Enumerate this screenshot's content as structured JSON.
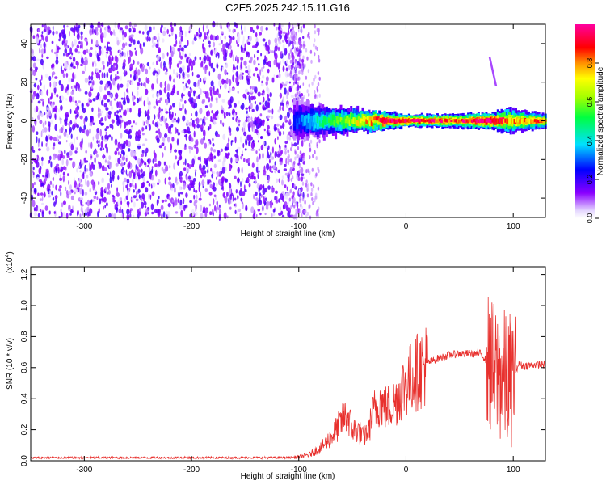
{
  "title": "C2E5.2025.242.15.11.G16",
  "chart_data": [
    {
      "type": "heatmap",
      "title": "C2E5.2025.242.15.11.G16",
      "xlabel": "Height of straight line (km)",
      "ylabel": "Frequency (Hz)",
      "xlim": [
        -350,
        130
      ],
      "ylim": [
        -50,
        50
      ],
      "x_ticks": [
        -300,
        -200,
        -100,
        0,
        100
      ],
      "x_tick_labels": [
        "-300",
        "-200",
        "-100",
        "0",
        "100"
      ],
      "y_ticks": [
        -40,
        -20,
        0,
        20,
        40
      ],
      "y_tick_labels": [
        "-40",
        "-20",
        "0",
        "20",
        "40"
      ],
      "colorbar": {
        "label": "Normalized spectral amplitude",
        "range": [
          0.0,
          1.0
        ],
        "ticks": [
          0.0,
          0.2,
          0.4,
          0.6,
          0.8
        ],
        "tick_labels": [
          "0.0",
          "0.2",
          "0.4",
          "0.6",
          "0.8"
        ]
      },
      "features": {
        "noise_region_x": [
          -350,
          -95
        ],
        "noise_amplitude": 0.18,
        "carrier_frequency_hz": 0,
        "carrier_start_x": -105,
        "carrier_profile": [
          {
            "x": -100,
            "amp": 0.28,
            "width_hz": 9
          },
          {
            "x": -80,
            "amp": 0.45,
            "width_hz": 7
          },
          {
            "x": -60,
            "amp": 0.55,
            "width_hz": 6
          },
          {
            "x": -40,
            "amp": 0.7,
            "width_hz": 5
          },
          {
            "x": -20,
            "amp": 0.9,
            "width_hz": 4
          },
          {
            "x": 0,
            "amp": 0.92,
            "width_hz": 3
          },
          {
            "x": 40,
            "amp": 0.85,
            "width_hz": 3
          },
          {
            "x": 80,
            "amp": 0.95,
            "width_hz": 4
          },
          {
            "x": 95,
            "amp": 0.75,
            "width_hz": 6
          },
          {
            "x": 130,
            "amp": 0.8,
            "width_hz": 3
          }
        ],
        "streak": [
          [
            78,
            33
          ],
          [
            84,
            18
          ]
        ]
      }
    },
    {
      "type": "line",
      "xlabel": "Height of straight line (km)",
      "ylabel": "SNR (10 * v/v)",
      "multiplier_label": "(x10",
      "multiplier_exponent": "4",
      "multiplier_close": ")",
      "xlim": [
        -350,
        130
      ],
      "ylim": [
        0,
        1.25
      ],
      "x_ticks": [
        -300,
        -200,
        -100,
        0,
        100
      ],
      "x_tick_labels": [
        "-300",
        "-200",
        "-100",
        "0",
        "100"
      ],
      "y_ticks": [
        0.0,
        0.2,
        0.4,
        0.6,
        0.8,
        1.0,
        1.2
      ],
      "y_tick_labels": [
        "0.0",
        "0.2",
        "0.4",
        "0.6",
        "0.8",
        "1.0",
        "1.2"
      ],
      "series": [
        {
          "name": "SNR",
          "color": "#e8312e",
          "points": [
            [
              -350,
              0.02
            ],
            [
              -300,
              0.02
            ],
            [
              -250,
              0.02
            ],
            [
              -200,
              0.02
            ],
            [
              -150,
              0.02
            ],
            [
              -110,
              0.02
            ],
            [
              -100,
              0.025
            ],
            [
              -90,
              0.04
            ],
            [
              -80,
              0.08
            ],
            [
              -70,
              0.15
            ],
            [
              -60,
              0.25
            ],
            [
              -55,
              0.3
            ],
            [
              -50,
              0.2
            ],
            [
              -45,
              0.2
            ],
            [
              -40,
              0.15
            ],
            [
              -35,
              0.2
            ],
            [
              -30,
              0.32
            ],
            [
              -25,
              0.38
            ],
            [
              -20,
              0.34
            ],
            [
              -15,
              0.35
            ],
            [
              -10,
              0.38
            ],
            [
              -5,
              0.45
            ],
            [
              0,
              0.5
            ],
            [
              10,
              0.57
            ],
            [
              20,
              0.63
            ],
            [
              30,
              0.66
            ],
            [
              40,
              0.68
            ],
            [
              50,
              0.69
            ],
            [
              60,
              0.69
            ],
            [
              70,
              0.69
            ],
            [
              80,
              0.6
            ],
            [
              85,
              0.55
            ],
            [
              90,
              0.55
            ],
            [
              95,
              0.5
            ],
            [
              100,
              0.55
            ],
            [
              105,
              0.62
            ],
            [
              110,
              0.61
            ],
            [
              120,
              0.62
            ],
            [
              130,
              0.62
            ]
          ]
        }
      ]
    }
  ]
}
